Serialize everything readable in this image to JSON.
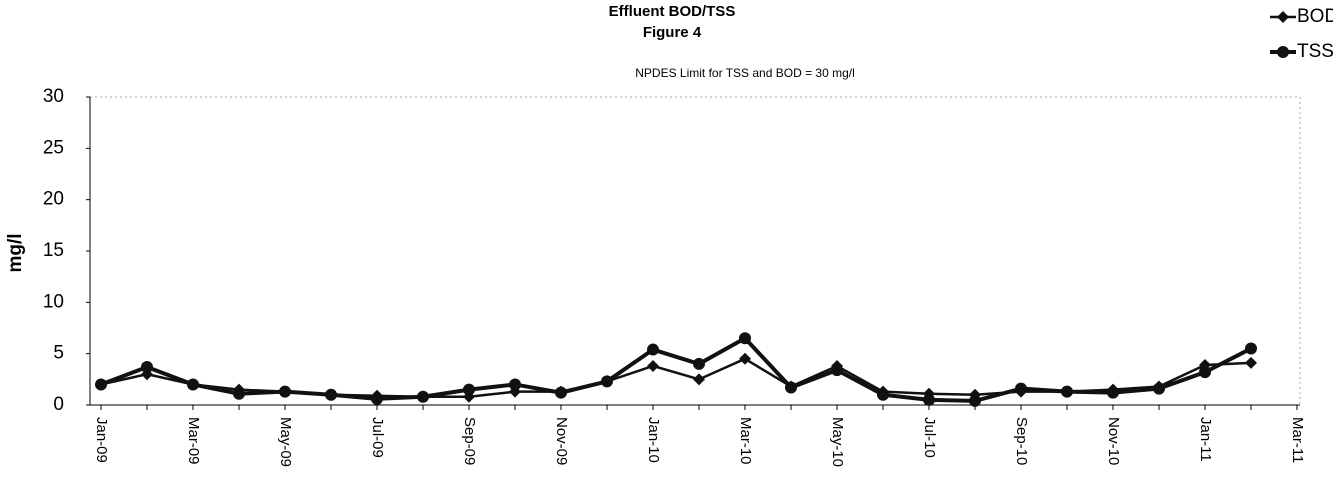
{
  "chart_data": {
    "type": "line",
    "title": "Effluent BOD/TSS",
    "subtitle": "Figure 4",
    "annotation": "NPDES Limit for TSS and BOD = 30 mg/l",
    "y_label": "mg/l",
    "categories": [
      "Jan-09",
      null,
      "Mar-09",
      null,
      "May-09",
      null,
      "Jul-09",
      null,
      "Sep-09",
      null,
      "Nov-09",
      null,
      "Jan-10",
      null,
      "Mar-10",
      null,
      "May-10",
      null,
      "Jul-10",
      null,
      "Sep-10",
      null,
      "Nov-10",
      null,
      "Jan-11",
      null,
      "Mar-11"
    ],
    "series": [
      {
        "name": "BOD",
        "color": "#111111",
        "marker": "diamond",
        "values": [
          2,
          3,
          2,
          1.5,
          1.3,
          1,
          0.9,
          0.8,
          0.8,
          1.3,
          1.3,
          2.3,
          3.8,
          2.5,
          4.5,
          1.8,
          3.8,
          1.3,
          1.1,
          1,
          1.3,
          1.3,
          1.5,
          1.8,
          3.9,
          4.1,
          null
        ]
      },
      {
        "name": "TSS",
        "color": "#111111",
        "marker": "circle",
        "values": [
          2,
          3.7,
          2,
          1.1,
          1.3,
          1,
          0.6,
          0.8,
          1.5,
          2,
          1.2,
          2.3,
          5.4,
          4,
          6.5,
          1.7,
          3.4,
          1,
          0.5,
          0.4,
          1.6,
          1.3,
          1.2,
          1.6,
          3.2,
          5.5,
          null
        ]
      }
    ],
    "ylim": [
      0,
      30
    ],
    "yticks": [
      0,
      5,
      10,
      15,
      20,
      25,
      30
    ],
    "grid": false,
    "legend": "top-right"
  }
}
